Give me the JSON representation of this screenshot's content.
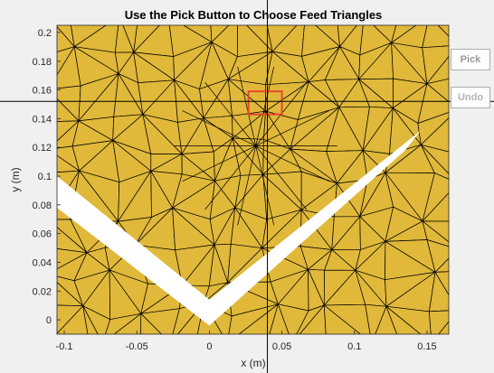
{
  "title": "Use the Pick Button to Choose Feed Triangles",
  "buttons": {
    "pick": "Pick",
    "undo": "Undo"
  },
  "colors": {
    "mesh_fill": "#e0b83a",
    "mesh_edge": "#000000",
    "background": "#f0f0f0",
    "selection_box": "#e8472c",
    "gap": "#ffffff"
  },
  "chart_data": {
    "type": "mesh",
    "xlabel": "x (m)",
    "ylabel": "y (m)",
    "xlim": [
      -0.105,
      0.165
    ],
    "ylim": [
      -0.01,
      0.205
    ],
    "xticks": [
      -0.1,
      -0.05,
      0,
      0.05,
      0.1,
      0.15
    ],
    "xtick_labels": [
      "-0.1",
      "-0.05",
      "0",
      "0.05",
      "0.1",
      "0.15"
    ],
    "yticks": [
      0,
      0.02,
      0.04,
      0.06,
      0.08,
      0.1,
      0.12,
      0.14,
      0.16,
      0.18,
      0.2
    ],
    "ytick_labels": [
      "0",
      "0.02",
      "0.04",
      "0.06",
      "0.08",
      "0.1",
      "0.12",
      "0.14",
      "0.16",
      "0.18",
      "0.2"
    ],
    "grid": true,
    "crosshair": [
      0.04,
      0.152
    ],
    "selection_box": {
      "x": [
        0.027,
        0.05
      ],
      "y": [
        0.143,
        0.159
      ]
    },
    "v_slot_outer": [
      [
        -0.105,
        0.078
      ],
      [
        0.0,
        -0.002
      ],
      [
        0.135,
        0.118
      ],
      [
        0.15,
        0.134
      ],
      [
        0.0,
        0.0
      ]
    ],
    "v_slot_polygon": [
      [
        -0.105,
        0.078
      ],
      [
        0.0,
        -0.004
      ],
      [
        0.135,
        0.118
      ],
      [
        0.146,
        0.132
      ],
      [
        0.0,
        0.014
      ],
      [
        -0.105,
        0.1
      ]
    ]
  }
}
